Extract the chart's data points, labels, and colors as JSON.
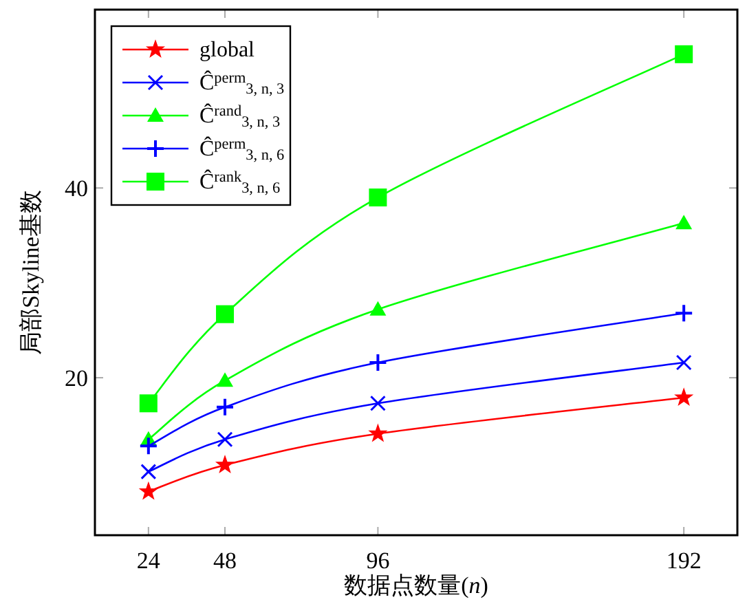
{
  "chart_data": {
    "type": "line",
    "xlabel": "数据点数量(*n*)",
    "ylabel": "局部Skyline基数",
    "x": [
      24,
      48,
      96,
      192
    ],
    "xlim": [
      7.2,
      208.8
    ],
    "xticks": [
      24,
      48,
      96,
      192
    ],
    "ylim": [
      3.4,
      58.8
    ],
    "yticks": [
      20,
      40
    ],
    "legend": "top left",
    "grid": false,
    "series": [
      {
        "name": "global",
        "color": "#ff0000",
        "marker": "star",
        "values": [
          8.0,
          10.8,
          14.1,
          17.9
        ]
      },
      {
        "name": "Ĉ$^{perm}$$_{3, n, 3}$",
        "color": "#0000ff",
        "marker": "cross",
        "values": [
          10.1,
          13.5,
          17.3,
          21.6
        ]
      },
      {
        "name": "Ĉ$^{rand}$$_{3, n, 3}$",
        "color": "#00ff00",
        "marker": "triangle",
        "values": [
          13.5,
          19.7,
          27.2,
          36.3
        ]
      },
      {
        "name": "Ĉ$^{perm}$$_{3, n, 6}$",
        "color": "#0000ff",
        "marker": "plus",
        "values": [
          12.8,
          16.9,
          21.6,
          26.8
        ]
      },
      {
        "name": "Ĉ$^{rank}$$_{3, n, 6}$",
        "color": "#00ff00",
        "marker": "square",
        "values": [
          17.3,
          26.7,
          39.0,
          54.1
        ]
      }
    ]
  }
}
